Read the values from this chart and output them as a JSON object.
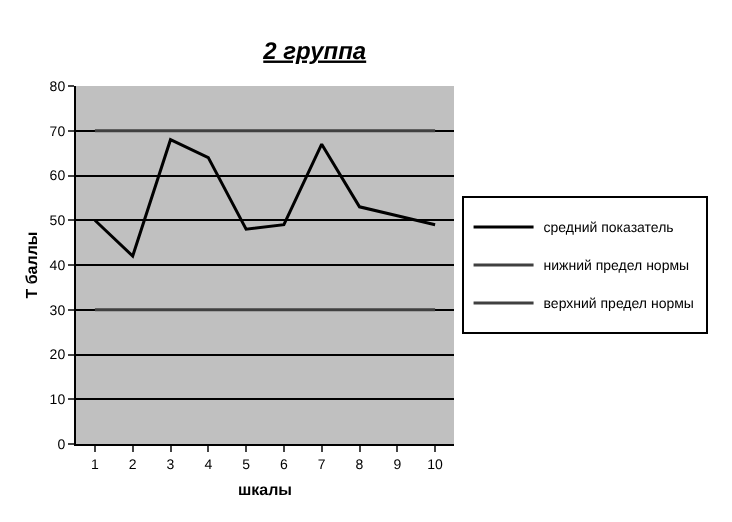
{
  "chart_data": {
    "type": "line",
    "title": "2 группа",
    "xlabel": "шкалы",
    "ylabel": "Т баллы",
    "categories": [
      "1",
      "2",
      "3",
      "4",
      "5",
      "6",
      "7",
      "8",
      "9",
      "10"
    ],
    "series": [
      {
        "name": "средний показатель",
        "color": "#000000",
        "values": [
          50,
          42,
          68,
          64,
          48,
          49,
          67,
          53,
          51,
          49
        ]
      },
      {
        "name": "нижний предел нормы",
        "color": "#404040",
        "values": [
          30,
          30,
          30,
          30,
          30,
          30,
          30,
          30,
          30,
          30
        ]
      },
      {
        "name": "верхний предел нормы",
        "color": "#404040",
        "values": [
          70,
          70,
          70,
          70,
          70,
          70,
          70,
          70,
          70,
          70
        ]
      }
    ],
    "ylim": [
      0,
      80
    ],
    "yticks": [
      0,
      10,
      20,
      30,
      40,
      50,
      60,
      70,
      80
    ],
    "grid": "y",
    "legend": "right",
    "line_style": "solid"
  }
}
